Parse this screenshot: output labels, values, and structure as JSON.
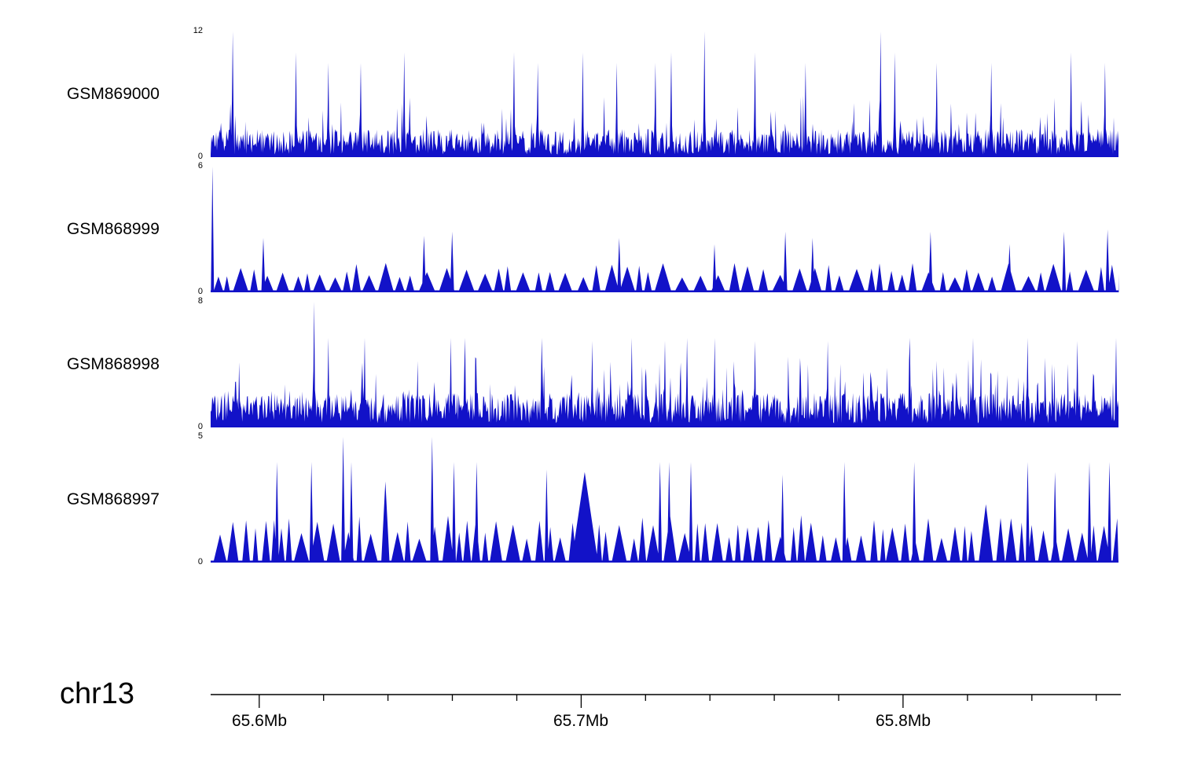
{
  "chart_data": {
    "type": "area",
    "title": "",
    "color": "#1212C8",
    "xaxis": {
      "chrom": "chr13",
      "xlim_mb": [
        65.5854,
        65.8674
      ],
      "major_ticks": [
        {
          "pos_mb": 65.6,
          "label": "65.6Mb"
        },
        {
          "pos_mb": 65.7,
          "label": "65.7Mb"
        },
        {
          "pos_mb": 65.8,
          "label": "65.8Mb"
        }
      ],
      "minor_tick_start_mb": 65.6,
      "minor_tick_interval_mb": 0.02,
      "minor_tick_end_mb": 65.86
    },
    "tracks": [
      {
        "name": "GSM869000",
        "ylim": [
          0,
          12
        ],
        "ytick_labels": [
          "0",
          "12"
        ],
        "style": "dense",
        "seed": 7,
        "noise_min": 0.25,
        "noise_max": 2.7,
        "mid_spikes": [
          [
            6,
            0.02
          ],
          [
            4.5,
            0.03
          ]
        ],
        "notable_spikes": [
          [
            0.024,
            12
          ],
          [
            0.094,
            10
          ],
          [
            0.13,
            9
          ],
          [
            0.165,
            9
          ],
          [
            0.213,
            10
          ],
          [
            0.334,
            10
          ],
          [
            0.36,
            9
          ],
          [
            0.41,
            10
          ],
          [
            0.447,
            9
          ],
          [
            0.49,
            9
          ],
          [
            0.507,
            10
          ],
          [
            0.544,
            12
          ],
          [
            0.6,
            10
          ],
          [
            0.655,
            9
          ],
          [
            0.738,
            12
          ],
          [
            0.754,
            10
          ],
          [
            0.8,
            9
          ],
          [
            0.86,
            9
          ],
          [
            0.948,
            10
          ],
          [
            0.985,
            9
          ]
        ]
      },
      {
        "name": "GSM868999",
        "ylim": [
          0,
          6
        ],
        "ytick_labels": [
          "0",
          "6"
        ],
        "style": "triangles",
        "seed": 13,
        "gap_max": 6,
        "tri_min_w": 8,
        "tri_max_w": 22,
        "tri_min_h": 0.7,
        "tri_max_h": 1.4,
        "tall_prob": 0.04,
        "notable_spikes": [
          [
            0.002,
            6,
            4
          ],
          [
            0.058,
            2.6
          ],
          [
            0.235,
            2.7
          ],
          [
            0.266,
            2.9
          ],
          [
            0.45,
            2.6
          ],
          [
            0.555,
            2.3
          ],
          [
            0.633,
            2.9
          ],
          [
            0.663,
            2.6
          ],
          [
            0.793,
            2.9
          ],
          [
            0.88,
            2.3
          ],
          [
            0.94,
            2.9
          ],
          [
            0.988,
            3
          ]
        ]
      },
      {
        "name": "GSM868998",
        "ylim": [
          0,
          8
        ],
        "ytick_labels": [
          "0",
          "8"
        ],
        "style": "dense",
        "seed": 21,
        "noise_min": 0.25,
        "noise_max": 2.2,
        "mid_spikes": [
          [
            4.5,
            0.035
          ],
          [
            3.2,
            0.05
          ]
        ],
        "notable_spikes": [
          [
            0.114,
            8
          ],
          [
            0.13,
            5.7
          ],
          [
            0.17,
            5.7
          ],
          [
            0.265,
            5.7
          ],
          [
            0.28,
            5.7
          ],
          [
            0.365,
            5.7
          ],
          [
            0.42,
            5.5
          ],
          [
            0.464,
            5.7
          ],
          [
            0.5,
            5.5
          ],
          [
            0.525,
            5.7
          ],
          [
            0.555,
            5.7
          ],
          [
            0.6,
            5.5
          ],
          [
            0.68,
            5.5
          ],
          [
            0.77,
            5.7
          ],
          [
            0.84,
            5.7
          ],
          [
            0.9,
            5.7
          ],
          [
            0.955,
            5.5
          ],
          [
            0.997,
            5.7
          ]
        ]
      },
      {
        "name": "GSM868997",
        "ylim": [
          0,
          5
        ],
        "ytick_labels": [
          "0",
          "5"
        ],
        "style": "triangles",
        "seed": 5,
        "gap_max": 5,
        "tri_min_w": 7,
        "tri_max_w": 20,
        "tri_min_h": 0.9,
        "tri_max_h": 1.9,
        "tall_prob": 0.05,
        "notable_spikes": [
          [
            0.073,
            4
          ],
          [
            0.111,
            4
          ],
          [
            0.146,
            5
          ],
          [
            0.155,
            4
          ],
          [
            0.244,
            5
          ],
          [
            0.268,
            4
          ],
          [
            0.293,
            4
          ],
          [
            0.37,
            3.7
          ],
          [
            0.412,
            3.6,
            34
          ],
          [
            0.495,
            4
          ],
          [
            0.505,
            4
          ],
          [
            0.529,
            4
          ],
          [
            0.63,
            3.5
          ],
          [
            0.698,
            4
          ],
          [
            0.775,
            4
          ],
          [
            0.9,
            4
          ],
          [
            0.93,
            3.6
          ],
          [
            0.968,
            4
          ],
          [
            0.99,
            4
          ]
        ]
      }
    ]
  }
}
